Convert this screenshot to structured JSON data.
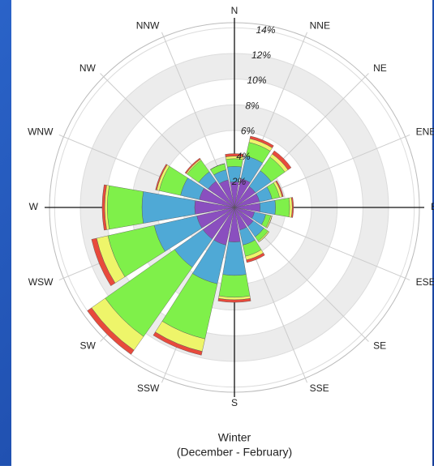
{
  "chart_data": {
    "type": "windrose",
    "title": "Winter",
    "subtitle": "(December - February)",
    "categories": [
      "N",
      "NNE",
      "NE",
      "ENE",
      "E",
      "ESE",
      "SE",
      "SSE",
      "S",
      "SSW",
      "SW",
      "WSW",
      "W",
      "WNW",
      "NW",
      "NNW"
    ],
    "series": [
      {
        "color": "#8a4fbf",
        "values": [
          2.0,
          2.3,
          2.0,
          2.0,
          2.0,
          1.6,
          1.8,
          1.8,
          2.7,
          3.0,
          3.0,
          3.0,
          3.1,
          2.8,
          2.5,
          2.2
        ]
      },
      {
        "color": "#4fa9d6",
        "values": [
          1.2,
          1.8,
          1.5,
          1.0,
          1.2,
          0.9,
          1.0,
          1.2,
          2.6,
          3.1,
          2.7,
          3.4,
          4.1,
          1.5,
          0.9,
          0.8
        ]
      },
      {
        "color": "#7ff04a",
        "values": [
          0.6,
          1.1,
          1.3,
          0.6,
          1.1,
          0.4,
          0.4,
          0.9,
          1.7,
          4.4,
          6.6,
          3.7,
          2.7,
          1.7,
          1.1,
          0.5
        ]
      },
      {
        "color": "#eef56a",
        "values": [
          0.2,
          0.3,
          0.3,
          0.2,
          0.2,
          0.1,
          0.1,
          0.3,
          0.2,
          1.0,
          1.3,
          0.9,
          0.2,
          0.2,
          0.1,
          0.0
        ]
      },
      {
        "color": "#e84a3c",
        "values": [
          0.2,
          0.2,
          0.3,
          0.1,
          0.1,
          0.0,
          0.0,
          0.2,
          0.2,
          0.3,
          0.4,
          0.4,
          0.2,
          0.1,
          0.1,
          0.0
        ]
      }
    ],
    "rlim": [
      0,
      14.4
    ],
    "rticks": [
      {
        "value": 2,
        "label": "2%"
      },
      {
        "value": 4,
        "label": "4%"
      },
      {
        "value": 6,
        "label": "6%"
      },
      {
        "value": 8,
        "label": "8%"
      },
      {
        "value": 10,
        "label": "10%"
      },
      {
        "value": 12,
        "label": "12%"
      },
      {
        "value": 14,
        "label": "14%"
      }
    ]
  }
}
